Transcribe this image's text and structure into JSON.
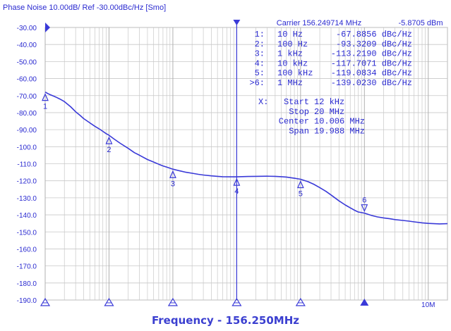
{
  "chart_data": {
    "type": "line",
    "title": "Phase Noise 10.00dB/ Ref -30.00dBc/Hz [Smo]",
    "carrier_label": "Carrier 156.249714 MHz",
    "carrier_level": "-5.8705 dBm",
    "xlabel": "Frequency - 156.250MHz",
    "xscale": "log",
    "xlim_hz": [
      10,
      20000000
    ],
    "ylim": [
      -190,
      -30
    ],
    "yticks": [
      "-30.00",
      "-40.00",
      "-50.00",
      "-60.00",
      "-70.00",
      "-80.00",
      "-90.00",
      "-100.0",
      "-110.0",
      "-120.0",
      "-130.0",
      "-140.0",
      "-150.0",
      "-160.0",
      "-170.0",
      "-180.0",
      "-190.0"
    ],
    "xtick_labels": [
      {
        "hz": 10000000,
        "label": "10M"
      }
    ],
    "grid": true,
    "markers": [
      {
        "id": "1",
        "list_prefix": "1:",
        "freq": "10 Hz",
        "freq_hz": 10,
        "value": "-67.8856 dBc/Hz",
        "y": -67.8856
      },
      {
        "id": "2",
        "list_prefix": "2:",
        "freq": "100 Hz",
        "freq_hz": 100,
        "value": "-93.3209 dBc/Hz",
        "y": -93.3209
      },
      {
        "id": "3",
        "list_prefix": "3:",
        "freq": "1 kHz",
        "freq_hz": 1000,
        "value": "-113.2190 dBc/Hz",
        "y": -113.219
      },
      {
        "id": "4",
        "list_prefix": "4:",
        "freq": "10 kHz",
        "freq_hz": 10000,
        "value": "-117.7071 dBc/Hz",
        "y": -117.7071
      },
      {
        "id": "5",
        "list_prefix": "5:",
        "freq": "100 kHz",
        "freq_hz": 100000,
        "value": "-119.0834 dBc/Hz",
        "y": -119.0834
      },
      {
        "id": "6",
        "list_prefix": ">6:",
        "freq": "1 MHz",
        "freq_hz": 1000000,
        "value": "-139.0230 dBc/Hz",
        "y": -139.023
      }
    ],
    "analysis": [
      {
        "label": "X:",
        "key": "Start",
        "value": "12 kHz"
      },
      {
        "label": "",
        "key": "Stop",
        "value": "20 MHz"
      },
      {
        "label": "",
        "key": "Center",
        "value": "10.006 MHz"
      },
      {
        "label": "",
        "key": "Span",
        "value": "19.988 MHz"
      }
    ],
    "series": [
      {
        "x": [
          10,
          11,
          12,
          13,
          14,
          15,
          17,
          20,
          25,
          30,
          35,
          40,
          50,
          60,
          70,
          80,
          90,
          100,
          120,
          150,
          200,
          250,
          300,
          400,
          500,
          600,
          700,
          800,
          1000,
          1300,
          1600,
          2000,
          2500,
          3000,
          4000,
          5000,
          6000,
          8000,
          10000,
          15000,
          20000,
          30000,
          40000,
          50000,
          60000,
          70000,
          80000,
          100000,
          130000,
          160000,
          200000,
          250000,
          300000,
          400000,
          500000,
          600000,
          700000,
          800000,
          1000000,
          1300000,
          1600000,
          2000000,
          2500000,
          3000000,
          4000000,
          5000000,
          6000000,
          8000000,
          10000000,
          15000000,
          20000000
        ],
        "y": [
          -67.9,
          -68.8,
          -69.5,
          -70.0,
          -70.5,
          -71.0,
          -72.0,
          -73.5,
          -76.5,
          -79.5,
          -81.5,
          -83.5,
          -86.0,
          -88.0,
          -89.5,
          -91.0,
          -92.3,
          -93.3,
          -95.5,
          -98.0,
          -101.0,
          -103.5,
          -105.0,
          -107.5,
          -109.0,
          -110.3,
          -111.3,
          -112.0,
          -113.2,
          -114.2,
          -115.0,
          -115.6,
          -116.2,
          -116.6,
          -117.1,
          -117.4,
          -117.6,
          -117.7,
          -117.7,
          -117.5,
          -117.4,
          -117.3,
          -117.4,
          -117.6,
          -117.8,
          -118.2,
          -118.5,
          -119.1,
          -120.5,
          -122.0,
          -124.0,
          -126.2,
          -128.3,
          -131.8,
          -134.2,
          -135.9,
          -137.3,
          -138.3,
          -139.0,
          -140.4,
          -141.2,
          -141.8,
          -142.3,
          -142.8,
          -143.3,
          -143.7,
          -144.1,
          -144.7,
          -145.0,
          -145.3,
          -145.2
        ]
      }
    ]
  },
  "footer_caption": "Frequency - 156.250MHz",
  "colors": {
    "trace": "#3a3ad8",
    "grid": "#c8c8c8",
    "text": "#2a2ad0",
    "caption": "#3b3fd0",
    "background": "#ffffff"
  }
}
